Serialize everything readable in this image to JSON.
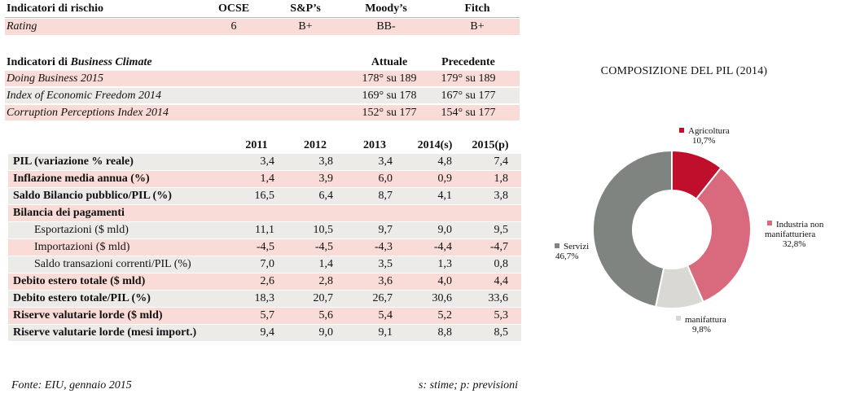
{
  "rating": {
    "header": {
      "label": "Indicatori di rischio",
      "cols": [
        "OCSE",
        "S&P’s",
        "Moody’s",
        "Fitch"
      ]
    },
    "row": {
      "label": "Rating",
      "values": [
        "6",
        "B+",
        "BB-",
        "B+"
      ]
    }
  },
  "business_climate": {
    "header": {
      "label_prefix": "Indicatori di ",
      "label_italic": "Business Climate",
      "cols": [
        "Attuale",
        "Precedente"
      ]
    },
    "rows": [
      {
        "label": "Doing Business 2015",
        "current": "178° su 189",
        "previous": "179° su 189"
      },
      {
        "label": "Index of Economic Freedom 2014",
        "current": "169° su 178",
        "previous": "167° su 177"
      },
      {
        "label": "Corruption Perceptions Index 2014",
        "current": "152° su 177",
        "previous": "154° su 177"
      }
    ]
  },
  "macro": {
    "years": [
      "2011",
      "2012",
      "2013",
      "2014(s)",
      "2015(p)"
    ],
    "rows": [
      {
        "label": "PIL (variazione % reale)",
        "values": [
          "3,4",
          "3,8",
          "3,4",
          "4,8",
          "7,4"
        ]
      },
      {
        "label": "Inflazione media annua (%)",
        "values": [
          "1,4",
          "3,9",
          "6,0",
          "0,9",
          "1,8"
        ]
      },
      {
        "label": "Saldo Bilancio pubblico/PIL (%)",
        "values": [
          "16,5",
          "6,4",
          "8,7",
          "4,1",
          "3,8"
        ]
      },
      {
        "label": "Bilancia dei pagamenti",
        "values": [
          "",
          "",
          "",
          "",
          ""
        ]
      },
      {
        "label": "Esportazioni ($ mld)",
        "values": [
          "11,1",
          "10,5",
          "9,7",
          "9,0",
          "9,5"
        ]
      },
      {
        "label": "Importazioni ($ mld)",
        "values": [
          "-4,5",
          "-4,5",
          "-4,3",
          "-4,4",
          "-4,7"
        ]
      },
      {
        "label": "Saldo transazioni correnti/PIL (%)",
        "values": [
          "7,0",
          "1,4",
          "3,5",
          "1,3",
          "0,8"
        ]
      },
      {
        "label": "Debito estero totale ($ mld)",
        "values": [
          "2,6",
          "2,8",
          "3,6",
          "4,0",
          "4,4"
        ]
      },
      {
        "label": "Debito estero totale/PIL (%)",
        "values": [
          "18,3",
          "20,7",
          "26,7",
          "30,6",
          "33,6"
        ]
      },
      {
        "label": "Riserve valutarie lorde ($ mld)",
        "values": [
          "5,7",
          "5,6",
          "5,4",
          "5,2",
          "5,3"
        ]
      },
      {
        "label": "Riserve valutarie lorde (mesi import.)",
        "values": [
          "9,4",
          "9,0",
          "9,1",
          "8,8",
          "8,5"
        ]
      }
    ]
  },
  "footer": {
    "source": "Fonte: EIU, gennaio 2015",
    "legend": "s: stime; p: previsioni"
  },
  "chart_data": {
    "type": "pie",
    "title": "COMPOSIZIONE DEL PIL (2014)",
    "donut": true,
    "slices": [
      {
        "name": "Agricoltura",
        "label": "10,7%",
        "value": 10.7,
        "color": "#c00f2d"
      },
      {
        "name": "Industria non manifatturiera",
        "label": "32,8%",
        "value": 32.8,
        "color": "#d9697c"
      },
      {
        "name": "manifattura",
        "label": "9,8%",
        "value": 9.8,
        "color": "#d9d8d5"
      },
      {
        "name": "Servizi",
        "label": "46,7%",
        "value": 46.7,
        "color": "#7f8480"
      }
    ]
  }
}
